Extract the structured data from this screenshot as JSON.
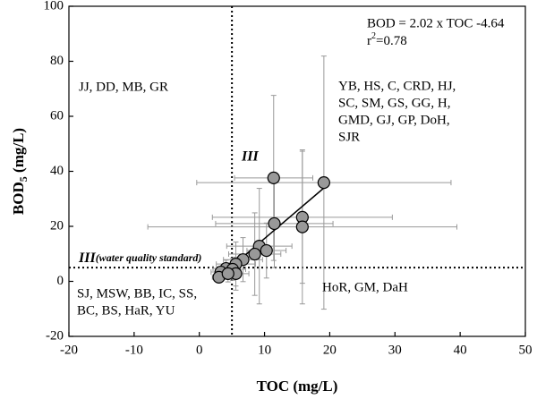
{
  "chart_data": {
    "type": "scatter",
    "x_label": "TOC (mg/L)",
    "y_label": {
      "main": "BOD",
      "sub": "5",
      "rest": " (mg/L)"
    },
    "xlim": [
      -20,
      50
    ],
    "xticks": [
      -20,
      -10,
      0,
      10,
      20,
      30,
      40,
      50
    ],
    "ylim": [
      -20,
      100
    ],
    "yticks": [
      -20,
      0,
      20,
      40,
      60,
      80,
      100
    ],
    "x": [
      11.4,
      19.1,
      11.5,
      15.8,
      15.8,
      9.2,
      10.3,
      8.5,
      6.7,
      5.6,
      4.1,
      5.1,
      3.3,
      3.0,
      5.6,
      4.4
    ],
    "series": [
      {
        "color": "#999999",
        "values": [
          37.6,
          35.9,
          21,
          23.3,
          19.8,
          12.8,
          11.2,
          9.9,
          7.9,
          6.3,
          4.7,
          4.4,
          3.4,
          1.5,
          2.8,
          2.8
        ],
        "xerr": [
          6,
          19.5,
          9,
          13.8,
          23.7,
          5,
          3,
          4,
          3,
          3,
          2,
          2,
          1.5,
          1,
          2,
          1.5
        ],
        "yerr": [
          30,
          46,
          16,
          24,
          28,
          21,
          10,
          15,
          8,
          8,
          3,
          4,
          2,
          2,
          6,
          3
        ]
      }
    ],
    "fit": {
      "slope": 2.02,
      "intercept": -4.64,
      "x_range": [
        3,
        19
      ]
    },
    "standard": {
      "x": 5,
      "y": 5
    },
    "equation": "BOD = 2.02 x TOC -4.64",
    "r2": {
      "main": "r",
      "sup": "2",
      "rest": "=0.78"
    },
    "quadrant_labels": [
      {
        "lines": [
          "JJ, DD, MB, GR"
        ]
      },
      {
        "lines": [
          "YB, HS, C, CRD, HJ,",
          "SC, SM, GS, GG, H,",
          "GMD, GJ, GP, DoH,",
          "SJR"
        ]
      },
      {
        "lines": [
          "SJ, MSW, BB, IC, SS,",
          "BC, BS, HaR, YU"
        ]
      },
      {
        "lines": [
          "HoR, GM, DaH"
        ]
      }
    ],
    "class_label": "III",
    "standard_label": {
      "main": "III",
      "rest": "(water quality standard)"
    }
  }
}
